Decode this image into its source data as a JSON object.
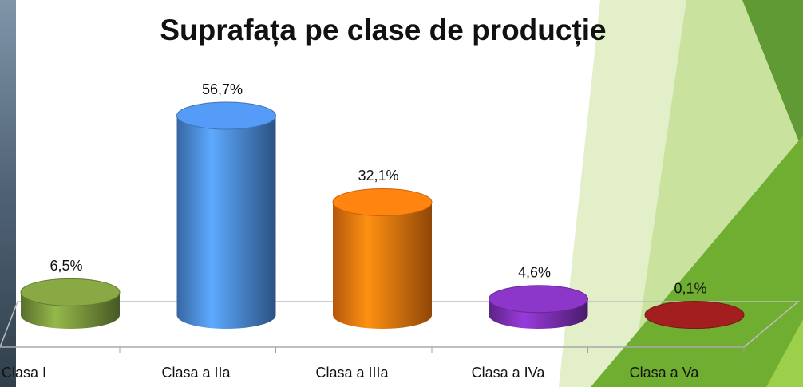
{
  "chart_data": {
    "type": "bar",
    "title": "Suprafața pe clase de producție",
    "categories": [
      "Clasa I",
      "Clasa a IIa",
      "Clasa a IIIa",
      "Clasa a IVa",
      "Clasa a Va"
    ],
    "values": [
      6.5,
      56.7,
      32.1,
      4.6,
      0.1
    ],
    "value_labels": [
      "6,5%",
      "56,7%",
      "32,1%",
      "4,6%",
      "0,1%"
    ],
    "colors": [
      "#77933c",
      "#4a88d8",
      "#f0740e",
      "#7a2fb0",
      "#8e1b1b"
    ]
  }
}
